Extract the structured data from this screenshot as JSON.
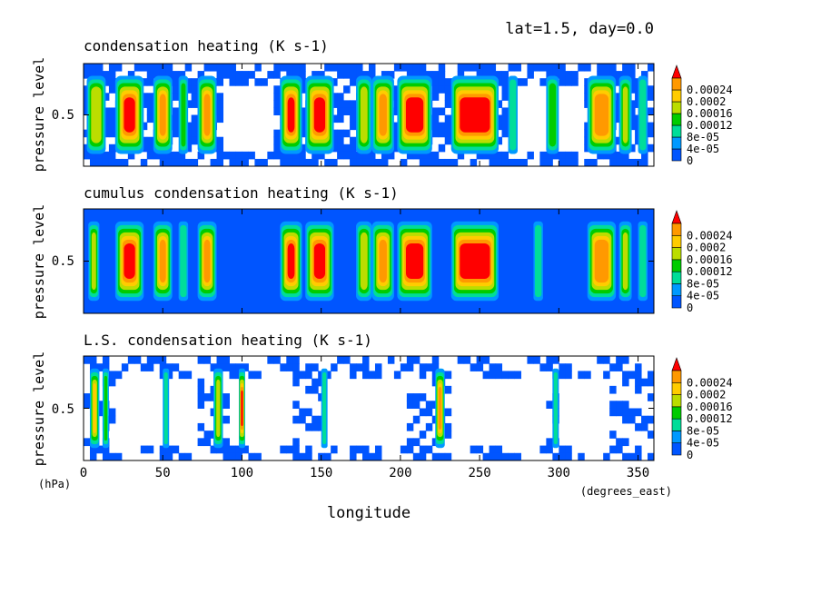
{
  "header": {
    "info": "lat=1.5, day=0.0"
  },
  "axes": {
    "ylabel": "pressure level",
    "yunit": "(hPa)",
    "xlabel": "longitude",
    "xunit": "(degrees_east)"
  },
  "colorbar": {
    "levels": [
      "0",
      "4e-05",
      "8e-05",
      "0.00012",
      "0.00016",
      "0.0002",
      "0.00024"
    ],
    "colors": [
      "#0055ff",
      "#0099ff",
      "#00dd99",
      "#00cc00",
      "#bbdd00",
      "#ffcc00",
      "#ff9900",
      "#ff0000"
    ]
  },
  "chart_data": [
    {
      "type": "heatmap",
      "title": "condensation heating (K s-1)",
      "xlim": [
        0,
        360
      ],
      "x_ticks": [
        0,
        50,
        100,
        150,
        200,
        250,
        300,
        350
      ],
      "y_ticks": [
        0.5
      ],
      "bands": [
        {
          "lon": [
            2,
            14
          ],
          "level": 4
        },
        {
          "lon": [
            20,
            38
          ],
          "level": 7
        },
        {
          "lon": [
            44,
            56
          ],
          "level": 6
        },
        {
          "lon": [
            60,
            66
          ],
          "level": 3
        },
        {
          "lon": [
            72,
            84
          ],
          "level": 6
        },
        {
          "lon": [
            124,
            138
          ],
          "level": 7
        },
        {
          "lon": [
            140,
            158
          ],
          "level": 7
        },
        {
          "lon": [
            172,
            182
          ],
          "level": 4
        },
        {
          "lon": [
            182,
            196
          ],
          "level": 6
        },
        {
          "lon": [
            198,
            220
          ],
          "level": 7
        },
        {
          "lon": [
            232,
            262
          ],
          "level": 7
        },
        {
          "lon": [
            268,
            274
          ],
          "level": 2
        },
        {
          "lon": [
            292,
            300
          ],
          "level": 3
        },
        {
          "lon": [
            318,
            336
          ],
          "level": 6
        },
        {
          "lon": [
            338,
            346
          ],
          "level": 4
        },
        {
          "lon": [
            350,
            356
          ],
          "level": 2
        }
      ],
      "gaps": [
        [
          86,
          118
        ],
        [
          268,
          312
        ]
      ]
    },
    {
      "type": "heatmap",
      "title": "cumulus condensation heating (K s-1)",
      "xlim": [
        0,
        360
      ],
      "x_ticks": [
        0,
        50,
        100,
        150,
        200,
        250,
        300,
        350
      ],
      "y_ticks": [
        0.5
      ],
      "bands": [
        {
          "lon": [
            3,
            10
          ],
          "level": 4
        },
        {
          "lon": [
            20,
            38
          ],
          "level": 7
        },
        {
          "lon": [
            44,
            56
          ],
          "level": 6
        },
        {
          "lon": [
            60,
            66
          ],
          "level": 2
        },
        {
          "lon": [
            72,
            84
          ],
          "level": 6
        },
        {
          "lon": [
            124,
            138
          ],
          "level": 7
        },
        {
          "lon": [
            140,
            158
          ],
          "level": 7
        },
        {
          "lon": [
            172,
            182
          ],
          "level": 4
        },
        {
          "lon": [
            182,
            196
          ],
          "level": 6
        },
        {
          "lon": [
            198,
            220
          ],
          "level": 7
        },
        {
          "lon": [
            232,
            262
          ],
          "level": 7
        },
        {
          "lon": [
            284,
            290
          ],
          "level": 2
        },
        {
          "lon": [
            318,
            336
          ],
          "level": 6
        },
        {
          "lon": [
            338,
            346
          ],
          "level": 4
        },
        {
          "lon": [
            350,
            356
          ],
          "level": 2
        }
      ],
      "gaps": []
    },
    {
      "type": "heatmap",
      "title": "L.S. condensation heating (K s-1)",
      "xlim": [
        0,
        360
      ],
      "x_ticks": [
        0,
        50,
        100,
        150,
        200,
        250,
        300,
        350
      ],
      "y_ticks": [
        0.5
      ],
      "bands": [
        {
          "lon": [
            4,
            10
          ],
          "level": 5
        },
        {
          "lon": [
            12,
            16
          ],
          "level": 3
        },
        {
          "lon": [
            50,
            54
          ],
          "level": 2
        },
        {
          "lon": [
            82,
            88
          ],
          "level": 4
        },
        {
          "lon": [
            98,
            102
          ],
          "level": 7
        },
        {
          "lon": [
            150,
            154
          ],
          "level": 2
        },
        {
          "lon": [
            222,
            228
          ],
          "level": 6
        },
        {
          "lon": [
            296,
            300
          ],
          "level": 2
        }
      ],
      "gaps": [
        [
          20,
          70
        ],
        [
          90,
          130
        ],
        [
          150,
          200
        ],
        [
          230,
          290
        ],
        [
          300,
          330
        ]
      ]
    }
  ]
}
